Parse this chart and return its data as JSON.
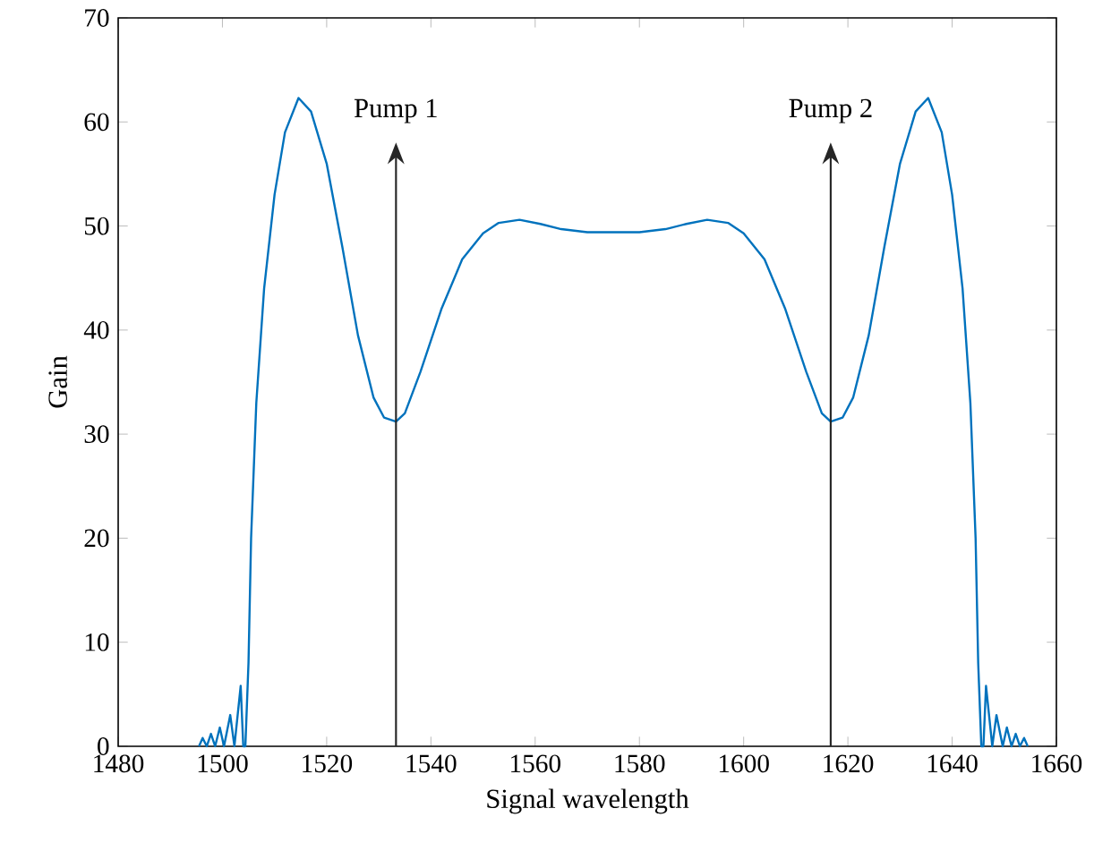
{
  "chart_data": {
    "type": "line",
    "xlabel": "Signal wavelength",
    "ylabel": "Gain",
    "xlim": [
      1480,
      1660
    ],
    "xticks": [
      1480,
      1500,
      1520,
      1540,
      1560,
      1580,
      1600,
      1620,
      1640,
      1660
    ],
    "ylim": [
      0,
      70
    ],
    "yticks": [
      0,
      10,
      20,
      30,
      40,
      50,
      60,
      70
    ],
    "grid": false,
    "marker": "none",
    "line_style": "solid",
    "series": [
      {
        "color": "#0072bd",
        "x": [
          1495.5,
          1496.2,
          1497,
          1497.8,
          1498.6,
          1499.5,
          1500.3,
          1501.5,
          1502.3,
          1503.5,
          1504,
          1504.4,
          1505,
          1505.5,
          1506.5,
          1508,
          1510,
          1512,
          1514.6,
          1517,
          1520,
          1523,
          1526,
          1529,
          1531,
          1533.3,
          1535,
          1538,
          1542,
          1546,
          1550,
          1553,
          1557,
          1561,
          1565,
          1570,
          1575,
          1580,
          1585,
          1589,
          1593,
          1597,
          1600,
          1604,
          1608,
          1612,
          1615,
          1616.7,
          1619,
          1621,
          1624,
          1627,
          1630,
          1633,
          1635.4,
          1638,
          1640,
          1642,
          1643.5,
          1644.5,
          1645,
          1645.6,
          1646,
          1646.5,
          1647.7,
          1648.5,
          1649.7,
          1650.5,
          1651.4,
          1652.2,
          1653,
          1653.8,
          1654.5
        ],
        "values": [
          0,
          0.8,
          0,
          1.2,
          0,
          1.8,
          0,
          3,
          0,
          5.8,
          0,
          0,
          8,
          20,
          33,
          44,
          53,
          59,
          62.3,
          61,
          56,
          48,
          39.5,
          33.5,
          31.6,
          31.2,
          32,
          36,
          42,
          46.8,
          49.3,
          50.3,
          50.6,
          50.2,
          49.7,
          49.4,
          49.4,
          49.4,
          49.7,
          50.2,
          50.6,
          50.3,
          49.3,
          46.8,
          42,
          36,
          32,
          31.2,
          31.6,
          33.5,
          39.5,
          48,
          56,
          61,
          62.3,
          59,
          53,
          44,
          33,
          20,
          8,
          0,
          0,
          5.8,
          0,
          3,
          0,
          1.8,
          0,
          1.2,
          0,
          0.8,
          0
        ]
      }
    ],
    "ref_lines": [
      {
        "axis": "x",
        "value": 1533.3,
        "label": "Pump 1"
      },
      {
        "axis": "x",
        "value": 1616.7,
        "label": "Pump 2"
      }
    ]
  }
}
